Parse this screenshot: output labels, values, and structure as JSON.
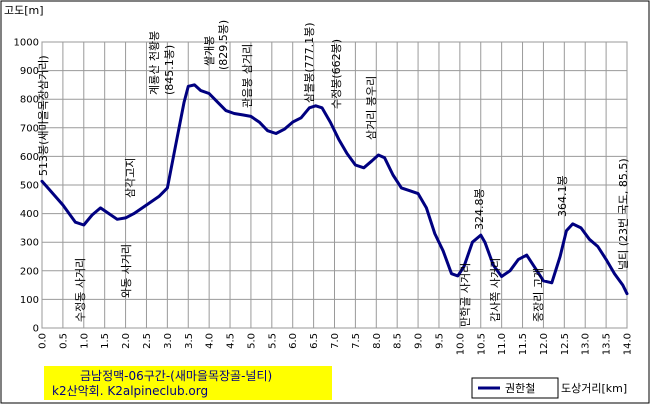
{
  "chart_data": {
    "type": "line",
    "title": "금남정맥-06구간-(새마을목장골-널티)",
    "subtitle": "k2산악회. K2alpineclub.org",
    "ylabel": "고도[m]",
    "xlabel": "도상거리[km]",
    "legend": "권한철",
    "legend_position": "bottom-right",
    "grid": true,
    "xlim": [
      0,
      14
    ],
    "ylim": [
      0,
      1000
    ],
    "x_ticks": [
      "0.0",
      "0.5",
      "1.0",
      "1.5",
      "2.0",
      "2.5",
      "3.0",
      "3.5",
      "4.0",
      "4.5",
      "5.0",
      "5.5",
      "6.0",
      "6.5",
      "7.0",
      "7.5",
      "8.0",
      "8.5",
      "9.0",
      "9.5",
      "10.0",
      "10.5",
      "11.0",
      "11.5",
      "12.0",
      "12.5",
      "13.0",
      "13.5",
      "14.0"
    ],
    "y_ticks": [
      "0",
      "100",
      "200",
      "300",
      "400",
      "500",
      "600",
      "700",
      "800",
      "900",
      "1000"
    ],
    "series": [
      {
        "name": "권한철",
        "color": "#000080",
        "x": [
          0.0,
          0.2,
          0.5,
          0.8,
          1.0,
          1.2,
          1.4,
          1.6,
          1.8,
          2.0,
          2.2,
          2.5,
          2.8,
          3.0,
          3.2,
          3.4,
          3.5,
          3.65,
          3.8,
          4.0,
          4.2,
          4.4,
          4.6,
          4.8,
          5.0,
          5.2,
          5.4,
          5.6,
          5.8,
          6.0,
          6.2,
          6.4,
          6.55,
          6.7,
          6.9,
          7.1,
          7.3,
          7.5,
          7.7,
          7.9,
          8.05,
          8.2,
          8.4,
          8.6,
          8.8,
          9.0,
          9.2,
          9.4,
          9.6,
          9.8,
          9.95,
          10.1,
          10.3,
          10.5,
          10.6,
          10.8,
          11.0,
          11.2,
          11.4,
          11.6,
          11.8,
          12.0,
          12.2,
          12.4,
          12.55,
          12.7,
          12.9,
          13.1,
          13.3,
          13.5,
          13.7,
          13.9,
          14.0
        ],
        "y": [
          513,
          480,
          430,
          370,
          360,
          395,
          420,
          400,
          380,
          385,
          400,
          430,
          460,
          490,
          640,
          790,
          845,
          850,
          830,
          820,
          790,
          760,
          750,
          745,
          740,
          720,
          690,
          680,
          695,
          720,
          735,
          770,
          777,
          770,
          720,
          660,
          610,
          570,
          560,
          585,
          605,
          595,
          535,
          490,
          480,
          470,
          420,
          330,
          270,
          190,
          182,
          215,
          300,
          325,
          300,
          220,
          180,
          200,
          240,
          255,
          210,
          165,
          158,
          250,
          340,
          364,
          350,
          310,
          285,
          240,
          190,
          150,
          120
        ]
      }
    ],
    "annotations": {
      "start_left": "513봉(새마을목장삼거리)",
      "sujeong_sageori": "수정동 사거리",
      "wadong_sageori": "와동 사거리",
      "samgakgogae": "삼각고지",
      "gyeryongsan": "계룡산 천황봉",
      "gyeryongsan_alt": "(845.1봉)",
      "ssalgaebong": "쌀개봉",
      "ssalgaebong_alt": "(829.5봉)",
      "gwaneumbong_sageori": "관음봉 삼거리",
      "sambulbong": "삼불봉(777.1봉)",
      "sujeongbong": "수정봉(662봉)",
      "bongurisageori": "삼거리 봉우리",
      "manhakgol": "만학골 사거리",
      "p3248": "324.8봉",
      "gapsa_sageori": "갑사쪽 사거리",
      "jungjangri": "중장리 고개",
      "p3641": "364.1봉",
      "neolti": "널티 (23번 국도, 85.5)"
    }
  }
}
